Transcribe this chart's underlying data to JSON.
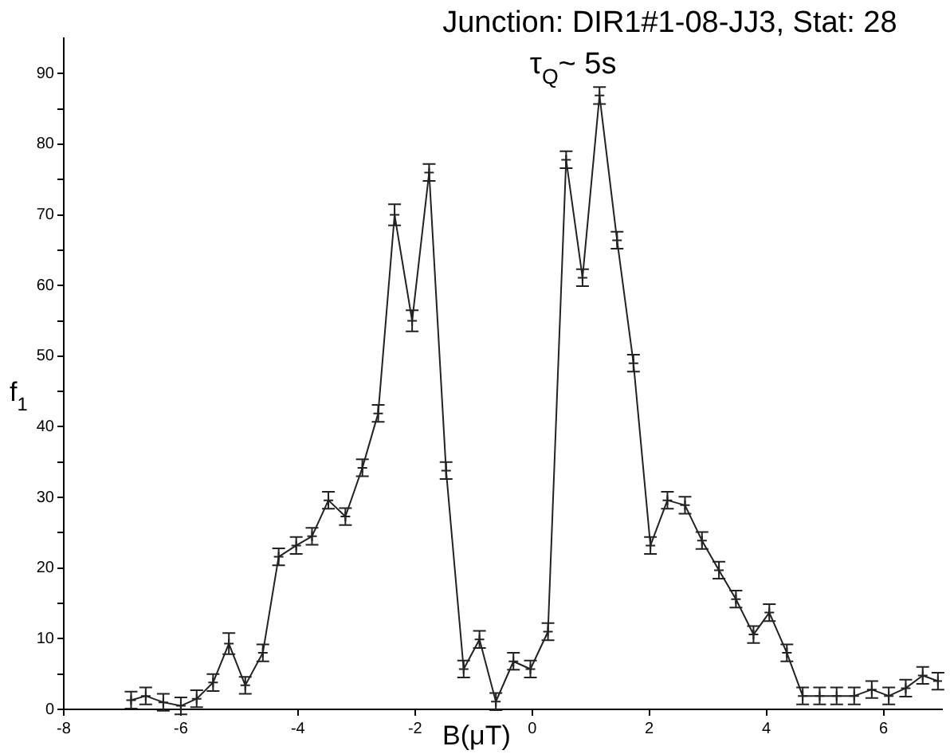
{
  "chart_data": {
    "type": "line",
    "title": "Junction: DIR1#1-08-JJ3, Stat: 28",
    "subtitle": "τ$_{Q}$~ 5s",
    "xlabel": "B(μT)",
    "ylabel": "f$_{1}$",
    "xlim": [
      -8,
      7
    ],
    "xticks": [
      -8,
      -6,
      -4,
      -2,
      0,
      2,
      4,
      6
    ],
    "ylim": [
      0,
      95
    ],
    "yticks": [
      0,
      {
        "value": 5,
        "label": null
      },
      10,
      {
        "value": 15,
        "label": null
      },
      20,
      {
        "value": 25,
        "label": null
      },
      30,
      {
        "value": 35,
        "label": null
      },
      40,
      {
        "value": 45,
        "label": null
      },
      50,
      {
        "value": 55,
        "label": null
      },
      60,
      {
        "value": 65,
        "label": null
      },
      70,
      {
        "value": 75,
        "label": null
      },
      80,
      {
        "value": 85,
        "label": null
      },
      90
    ],
    "marker": "cross",
    "line_style": "solid",
    "grid": false,
    "legend": false,
    "series": [
      {
        "color": "#222222",
        "x": [
          -6.85,
          -6.6,
          -6.3,
          -6.0,
          -5.73,
          -5.45,
          -5.18,
          -4.9,
          -4.6,
          -4.33,
          -4.03,
          -3.76,
          -3.48,
          -3.19,
          -2.9,
          -2.63,
          -2.35,
          -2.05,
          -1.76,
          -1.47,
          -1.17,
          -0.9,
          -0.62,
          -0.32,
          -0.03,
          0.27,
          0.58,
          0.86,
          1.15,
          1.45,
          1.73,
          2.02,
          2.31,
          2.61,
          2.9,
          3.19,
          3.48,
          3.78,
          4.05,
          4.35,
          4.62,
          4.91,
          5.2,
          5.5,
          5.8,
          6.09,
          6.38,
          6.67,
          6.93
        ],
        "values": [
          1.3,
          1.9,
          1,
          0.5,
          1.5,
          3.8,
          9.3,
          3.4,
          8,
          21.6,
          23.2,
          24.5,
          29.6,
          27.3,
          34.2,
          41.9,
          70,
          55,
          76,
          33.8,
          5.7,
          9.9,
          1.1,
          6.8,
          5.7,
          11,
          77.8,
          61.1,
          86.9,
          66.4,
          49,
          23.2,
          29.6,
          28.9,
          23.9,
          19.7,
          15.6,
          10.6,
          13.7,
          8,
          1.9,
          1.9,
          1.9,
          1.9,
          2.8,
          1.9,
          3,
          4.8,
          4
        ],
        "errors": [
          1.2,
          1.2,
          1.2,
          1.2,
          1.2,
          1.2,
          1.5,
          1.2,
          1.2,
          1.2,
          1.2,
          1.2,
          1.2,
          1.2,
          1.2,
          1.2,
          1.5,
          1.5,
          1.2,
          1.2,
          1.2,
          1.2,
          1.2,
          1.2,
          1.2,
          1.2,
          1.2,
          1.2,
          1.2,
          1.2,
          1.2,
          1.2,
          1.2,
          1.2,
          1.2,
          1.2,
          1.2,
          1.2,
          1.2,
          1.2,
          1.2,
          1.2,
          1.2,
          1.2,
          1.2,
          1.2,
          1.2,
          1.2,
          1.2
        ]
      }
    ]
  }
}
